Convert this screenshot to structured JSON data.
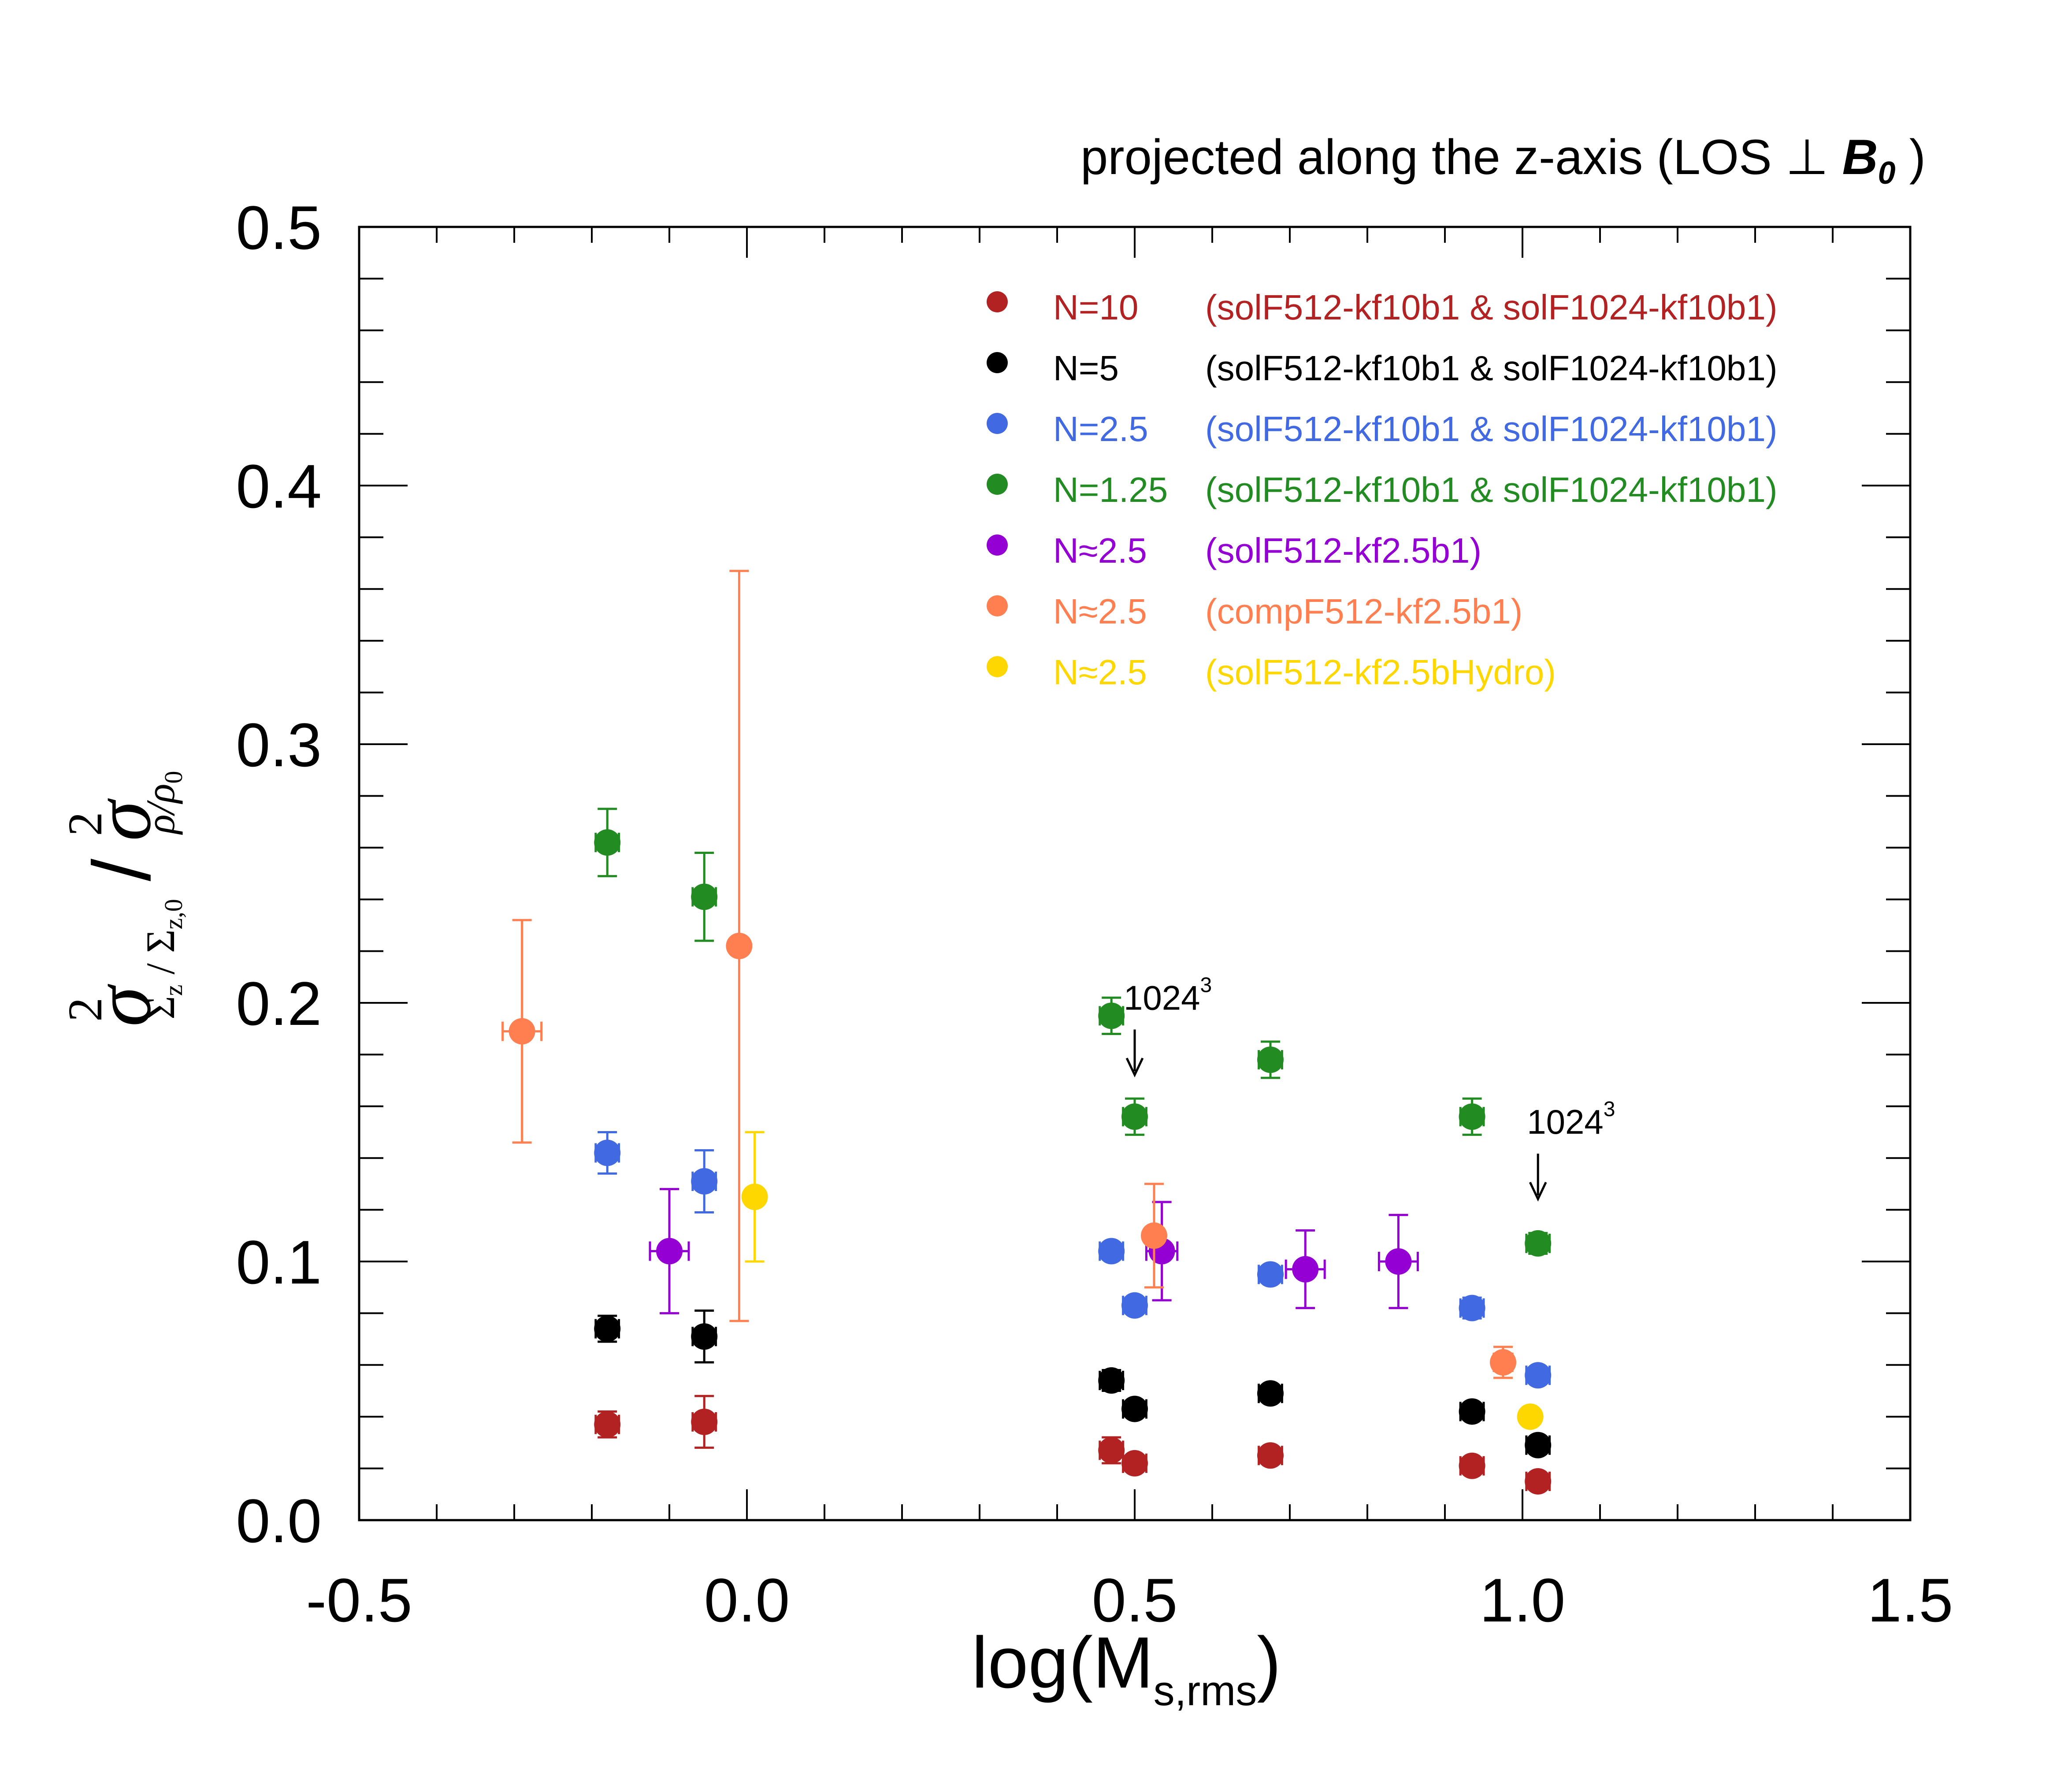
{
  "chart_data": {
    "type": "scatter",
    "title": "projected along the z-axis (LOS ⊥ B₀ )",
    "title_parts": {
      "before": "projected along the z-axis (LOS ⊥ ",
      "bold": "B",
      "sub": "0",
      "after": " )"
    },
    "xlabel": "log(M_s,rms)",
    "xlabel_parts": {
      "main": "log(M",
      "sub": "s,rms",
      "close": ")"
    },
    "ylabel": "σ² Σz/Σz,0 / σ² ρ/ρ0",
    "ylabel_parts": {
      "sigma": "σ",
      "sup": "2",
      "sub1": "Σ",
      "sub1b": "z",
      "sub1c": " / Σ",
      "sub1d": "z,0",
      "slash": "/",
      "sub2": "ρ/ρ",
      "sub2b": "0"
    },
    "xlim": [
      -0.5,
      1.5
    ],
    "ylim": [
      0.0,
      0.5
    ],
    "xticks": [
      -0.5,
      0.0,
      0.5,
      1.0,
      1.5
    ],
    "xtick_labels": [
      "-0.5",
      "0.0",
      "0.5",
      "1.0",
      "1.5"
    ],
    "yticks": [
      0.0,
      0.1,
      0.2,
      0.3,
      0.4,
      0.5
    ],
    "ytick_labels": [
      "0.0",
      "0.1",
      "0.2",
      "0.3",
      "0.4",
      "0.5"
    ],
    "x_minor_step": 0.1,
    "y_minor_step": 0.02,
    "grid": false,
    "legend_position": "top-right",
    "series": [
      {
        "name": "N=10",
        "desc": "(solF512-kf10b1 & solF1024-kf10b1)",
        "color": "#b22222",
        "points": [
          {
            "x": -0.18,
            "y": 0.037,
            "xerr": 0.015,
            "yerr_lo": 0.005,
            "yerr_hi": 0.005
          },
          {
            "x": -0.055,
            "y": 0.038,
            "xerr": 0.015,
            "yerr_lo": 0.01,
            "yerr_hi": 0.01
          },
          {
            "x": 0.47,
            "y": 0.027,
            "xerr": 0.015,
            "yerr_lo": 0.005,
            "yerr_hi": 0.005
          },
          {
            "x": 0.5,
            "y": 0.022,
            "xerr": 0.015,
            "yerr_lo": 0.003,
            "yerr_hi": 0.003
          },
          {
            "x": 0.675,
            "y": 0.025,
            "xerr": 0.015,
            "yerr_lo": 0.003,
            "yerr_hi": 0.003
          },
          {
            "x": 0.935,
            "y": 0.021,
            "xerr": 0.015,
            "yerr_lo": 0.003,
            "yerr_hi": 0.003
          },
          {
            "x": 1.02,
            "y": 0.015,
            "xerr": 0.015,
            "yerr_lo": 0.003,
            "yerr_hi": 0.003
          }
        ]
      },
      {
        "name": "N=5",
        "desc": "(solF512-kf10b1 & solF1024-kf10b1)",
        "color": "#000000",
        "points": [
          {
            "x": -0.18,
            "y": 0.074,
            "xerr": 0.015,
            "yerr_lo": 0.005,
            "yerr_hi": 0.005
          },
          {
            "x": -0.055,
            "y": 0.071,
            "xerr": 0.015,
            "yerr_lo": 0.01,
            "yerr_hi": 0.01
          },
          {
            "x": 0.47,
            "y": 0.054,
            "xerr": 0.015,
            "yerr_lo": 0.004,
            "yerr_hi": 0.004
          },
          {
            "x": 0.5,
            "y": 0.043,
            "xerr": 0.015,
            "yerr_lo": 0.003,
            "yerr_hi": 0.003
          },
          {
            "x": 0.675,
            "y": 0.049,
            "xerr": 0.015,
            "yerr_lo": 0.003,
            "yerr_hi": 0.003
          },
          {
            "x": 0.935,
            "y": 0.042,
            "xerr": 0.015,
            "yerr_lo": 0.003,
            "yerr_hi": 0.003
          },
          {
            "x": 1.02,
            "y": 0.029,
            "xerr": 0.015,
            "yerr_lo": 0.003,
            "yerr_hi": 0.003
          }
        ]
      },
      {
        "name": "N=2.5",
        "desc": "(solF512-kf10b1 & solF1024-kf10b1)",
        "color": "#4169e1",
        "points": [
          {
            "x": -0.18,
            "y": 0.142,
            "xerr": 0.015,
            "yerr_lo": 0.008,
            "yerr_hi": 0.008
          },
          {
            "x": -0.055,
            "y": 0.131,
            "xerr": 0.015,
            "yerr_lo": 0.012,
            "yerr_hi": 0.012
          },
          {
            "x": 0.47,
            "y": 0.104,
            "xerr": 0.015,
            "yerr_lo": 0.003,
            "yerr_hi": 0.003
          },
          {
            "x": 0.5,
            "y": 0.083,
            "xerr": 0.015,
            "yerr_lo": 0.003,
            "yerr_hi": 0.003
          },
          {
            "x": 0.675,
            "y": 0.095,
            "xerr": 0.015,
            "yerr_lo": 0.003,
            "yerr_hi": 0.003
          },
          {
            "x": 0.935,
            "y": 0.082,
            "xerr": 0.015,
            "yerr_lo": 0.004,
            "yerr_hi": 0.004
          },
          {
            "x": 1.02,
            "y": 0.056,
            "xerr": 0.015,
            "yerr_lo": 0.003,
            "yerr_hi": 0.003
          }
        ]
      },
      {
        "name": "N=1.25",
        "desc": "(solF512-kf10b1 & solF1024-kf10b1)",
        "color": "#228b22",
        "points": [
          {
            "x": -0.18,
            "y": 0.262,
            "xerr": 0.015,
            "yerr_lo": 0.013,
            "yerr_hi": 0.013
          },
          {
            "x": -0.055,
            "y": 0.241,
            "xerr": 0.015,
            "yerr_lo": 0.017,
            "yerr_hi": 0.017
          },
          {
            "x": 0.47,
            "y": 0.195,
            "xerr": 0.015,
            "yerr_lo": 0.007,
            "yerr_hi": 0.007
          },
          {
            "x": 0.5,
            "y": 0.156,
            "xerr": 0.015,
            "yerr_lo": 0.007,
            "yerr_hi": 0.007
          },
          {
            "x": 0.675,
            "y": 0.178,
            "xerr": 0.015,
            "yerr_lo": 0.007,
            "yerr_hi": 0.007
          },
          {
            "x": 0.935,
            "y": 0.156,
            "xerr": 0.015,
            "yerr_lo": 0.007,
            "yerr_hi": 0.007
          },
          {
            "x": 1.02,
            "y": 0.107,
            "xerr": 0.015,
            "yerr_lo": 0.004,
            "yerr_hi": 0.004
          }
        ]
      },
      {
        "name": "N≈2.5",
        "desc": "(solF512-kf2.5b1)",
        "color": "#9400d3",
        "points": [
          {
            "x": -0.1,
            "y": 0.104,
            "xerr": 0.025,
            "yerr_lo": 0.024,
            "yerr_hi": 0.024
          },
          {
            "x": 0.535,
            "y": 0.104,
            "xerr": 0.02,
            "yerr_lo": 0.019,
            "yerr_hi": 0.019
          },
          {
            "x": 0.72,
            "y": 0.097,
            "xerr": 0.025,
            "yerr_lo": 0.015,
            "yerr_hi": 0.015
          },
          {
            "x": 0.84,
            "y": 0.1,
            "xerr": 0.025,
            "yerr_lo": 0.018,
            "yerr_hi": 0.018
          }
        ]
      },
      {
        "name": "N≈2.5",
        "desc": "(compF512-kf2.5b1)",
        "color": "#ff7f50",
        "points": [
          {
            "x": -0.29,
            "y": 0.189,
            "xerr": 0.025,
            "yerr_lo": 0.043,
            "yerr_hi": 0.043
          },
          {
            "x": -0.01,
            "y": 0.222,
            "xerr": 0.006,
            "yerr_lo": 0.145,
            "yerr_hi": 0.145
          },
          {
            "x": 0.525,
            "y": 0.11,
            "xerr": 0.006,
            "yerr_lo": 0.02,
            "yerr_hi": 0.02
          },
          {
            "x": 0.975,
            "y": 0.061,
            "xerr": 0.012,
            "yerr_lo": 0.006,
            "yerr_hi": 0.006
          }
        ]
      },
      {
        "name": "N≈2.5",
        "desc": "(solF512-kf2.5bHydro)",
        "color": "#ffd700",
        "points": [
          {
            "x": 0.01,
            "y": 0.125,
            "xerr": 0.01,
            "yerr_lo": 0.025,
            "yerr_hi": 0.025
          },
          {
            "x": 1.01,
            "y": 0.04,
            "xerr": 0.008,
            "yerr_lo": 0.002,
            "yerr_hi": 0.002
          }
        ]
      }
    ],
    "annotations": [
      {
        "text": "1024",
        "sup": "3",
        "x": 0.5,
        "y": 0.165,
        "arrow": true
      },
      {
        "text": "1024",
        "sup": "3",
        "x": 1.02,
        "y": 0.117,
        "arrow": true
      }
    ]
  }
}
